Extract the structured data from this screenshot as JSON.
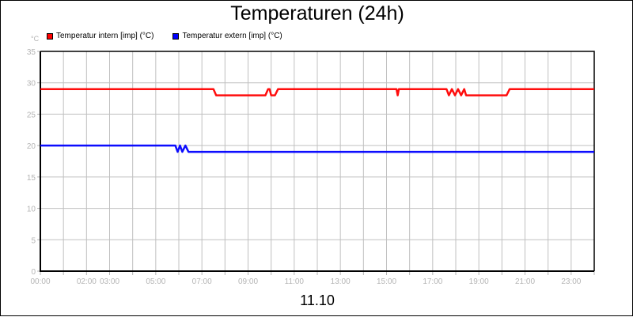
{
  "title": "Temperaturen (24h)",
  "unit_label": "°C",
  "date_label": "11.10",
  "legend": [
    {
      "label": "Temperatur intern [imp] (°C)",
      "color": "#ff0000"
    },
    {
      "label": "Temperatur extern [imp] (°C)",
      "color": "#0000ff"
    }
  ],
  "chart_data": {
    "type": "line",
    "title": "Temperaturen (24h)",
    "xlabel": "11.10",
    "ylabel": "°C",
    "ylim": [
      0,
      35
    ],
    "xlim": [
      "00:00",
      "24:00"
    ],
    "y_ticks": [
      0,
      5,
      10,
      15,
      20,
      25,
      30,
      35
    ],
    "x_tick_labels": [
      "00:00",
      "02:00",
      "03:00",
      "05:00",
      "07:00",
      "09:00",
      "11:00",
      "13:00",
      "15:00",
      "17:00",
      "19:00",
      "21:00",
      "23:00"
    ],
    "grid": true,
    "legend_position": "top-left",
    "series": [
      {
        "name": "Temperatur intern [imp] (°C)",
        "color": "#ff0000",
        "points": [
          [
            "00:00",
            29
          ],
          [
            "07:30",
            29
          ],
          [
            "07:37",
            28
          ],
          [
            "09:45",
            28
          ],
          [
            "09:52",
            29
          ],
          [
            "09:56",
            29
          ],
          [
            "10:00",
            28
          ],
          [
            "10:10",
            28
          ],
          [
            "10:18",
            29
          ],
          [
            "15:26",
            29
          ],
          [
            "15:29",
            28
          ],
          [
            "15:32",
            29
          ],
          [
            "17:36",
            29
          ],
          [
            "17:42",
            28
          ],
          [
            "17:50",
            29
          ],
          [
            "17:58",
            28
          ],
          [
            "18:06",
            29
          ],
          [
            "18:14",
            28
          ],
          [
            "18:22",
            29
          ],
          [
            "18:27",
            28
          ],
          [
            "20:12",
            28
          ],
          [
            "20:20",
            29
          ],
          [
            "24:00",
            29
          ]
        ]
      },
      {
        "name": "Temperatur extern [imp] (°C)",
        "color": "#0000ff",
        "points": [
          [
            "00:00",
            20
          ],
          [
            "05:51",
            20
          ],
          [
            "05:57",
            19
          ],
          [
            "06:03",
            20
          ],
          [
            "06:09",
            19
          ],
          [
            "06:17",
            20
          ],
          [
            "06:25",
            19
          ],
          [
            "24:00",
            19
          ]
        ]
      }
    ]
  }
}
